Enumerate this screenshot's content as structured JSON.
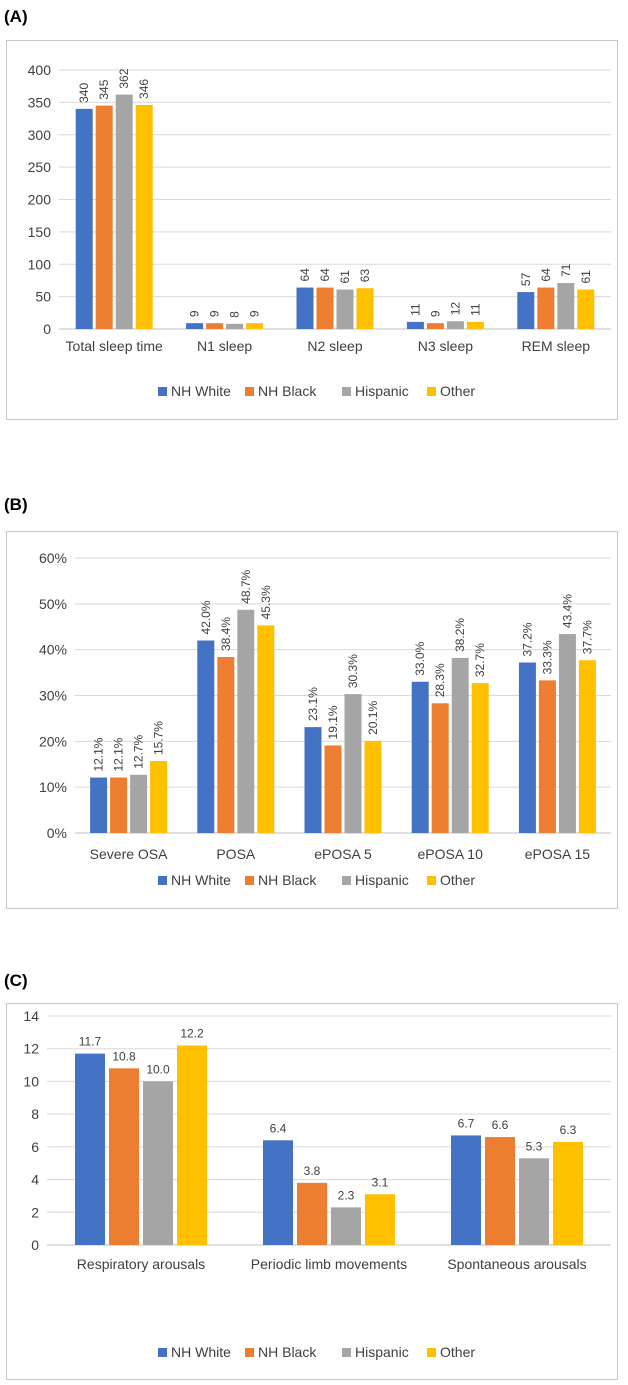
{
  "legend": [
    "NH White",
    "NH Black",
    "Hispanic",
    "Other"
  ],
  "colors": {
    "nh_white": "#4472C4",
    "nh_black": "#ED7D31",
    "hispanic": "#A5A5A5",
    "other": "#FFC000"
  },
  "chart_data": [
    {
      "panel_label": "(A)",
      "type": "bar",
      "title": "",
      "xlabel": "",
      "ylabel": "",
      "ylim": [
        0,
        400
      ],
      "y_ticks": [
        "0",
        "50",
        "100",
        "150",
        "200",
        "250",
        "300",
        "350",
        "400"
      ],
      "categories": [
        "Total sleep time",
        "N1 sleep",
        "N2 sleep",
        "N3 sleep",
        "REM sleep"
      ],
      "series": [
        {
          "name": "NH White",
          "values": [
            340,
            9,
            64,
            11,
            57
          ],
          "labels": [
            "340",
            "9",
            "64",
            "11",
            "57"
          ]
        },
        {
          "name": "NH Black",
          "values": [
            345,
            9,
            64,
            9,
            64
          ],
          "labels": [
            "345",
            "9",
            "64",
            "9",
            "64"
          ]
        },
        {
          "name": "Hispanic",
          "values": [
            362,
            8,
            61,
            12,
            71
          ],
          "labels": [
            "362",
            "8",
            "61",
            "12",
            "71"
          ]
        },
        {
          "name": "Other",
          "values": [
            346,
            9,
            63,
            11,
            61
          ],
          "labels": [
            "346",
            "9",
            "63",
            "11",
            "61"
          ]
        }
      ],
      "label_orientation": "vertical",
      "legend_position": "bottom"
    },
    {
      "panel_label": "(B)",
      "type": "bar",
      "title": "",
      "xlabel": "",
      "ylabel": "",
      "ylim": [
        0,
        60
      ],
      "y_ticks": [
        "0%",
        "10%",
        "20%",
        "30%",
        "40%",
        "50%",
        "60%"
      ],
      "categories": [
        "Severe OSA",
        "POSA",
        "ePOSA 5",
        "ePOSA 10",
        "ePOSA 15"
      ],
      "series": [
        {
          "name": "NH White",
          "values": [
            12.1,
            42.0,
            23.1,
            33.0,
            37.2
          ],
          "labels": [
            "12.1%",
            "42.0%",
            "23.1%",
            "33.0%",
            "37.2%"
          ]
        },
        {
          "name": "NH Black",
          "values": [
            12.1,
            38.4,
            19.1,
            28.3,
            33.3
          ],
          "labels": [
            "12.1%",
            "38.4%",
            "19.1%",
            "28.3%",
            "33.3%"
          ]
        },
        {
          "name": "Hispanic",
          "values": [
            12.7,
            48.7,
            30.3,
            38.2,
            43.4
          ],
          "labels": [
            "12.7%",
            "48.7%",
            "30.3%",
            "38.2%",
            "43.4%"
          ]
        },
        {
          "name": "Other",
          "values": [
            15.7,
            45.3,
            20.1,
            32.7,
            37.7
          ],
          "labels": [
            "15.7%",
            "45.3%",
            "20.1%",
            "32.7%",
            "37.7%"
          ]
        }
      ],
      "label_orientation": "vertical",
      "legend_position": "bottom"
    },
    {
      "panel_label": "(C)",
      "type": "bar",
      "title": "",
      "xlabel": "",
      "ylabel": "",
      "ylim": [
        0,
        14
      ],
      "y_ticks": [
        "0",
        "2",
        "4",
        "6",
        "8",
        "10",
        "12",
        "14"
      ],
      "categories": [
        "Respiratory arousals",
        "Periodic limb movements",
        "Spontaneous arousals"
      ],
      "series": [
        {
          "name": "NH White",
          "values": [
            11.7,
            6.4,
            6.7
          ],
          "labels": [
            "11.7",
            "6.4",
            "6.7"
          ]
        },
        {
          "name": "NH Black",
          "values": [
            10.8,
            3.8,
            6.6
          ],
          "labels": [
            "10.8",
            "3.8",
            "6.6"
          ]
        },
        {
          "name": "Hispanic",
          "values": [
            10.0,
            2.3,
            5.3
          ],
          "labels": [
            "10.0",
            "2.3",
            "5.3"
          ]
        },
        {
          "name": "Other",
          "values": [
            12.2,
            3.1,
            6.3
          ],
          "labels": [
            "12.2",
            "3.1",
            "6.3"
          ]
        }
      ],
      "label_orientation": "horizontal",
      "legend_position": "bottom"
    }
  ]
}
